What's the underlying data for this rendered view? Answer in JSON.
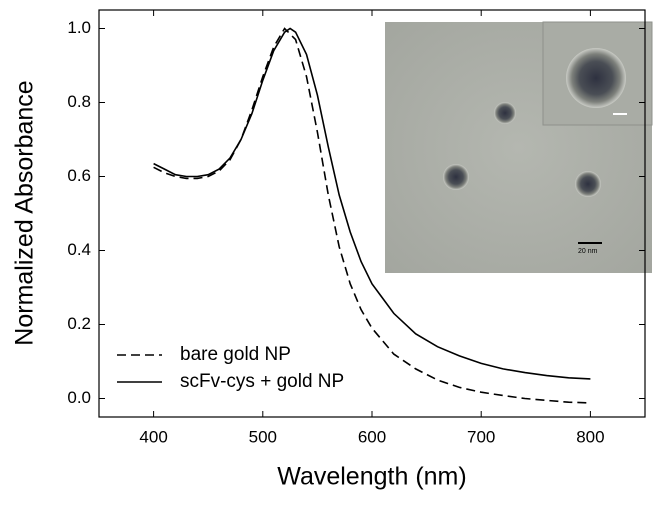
{
  "chart_data": {
    "type": "line",
    "x_label": "Wavelength (nm)",
    "y_label": "Normalized Absorbance",
    "xlim": [
      350,
      850
    ],
    "xticks": [
      400,
      500,
      600,
      700,
      800
    ],
    "ylim": [
      -0.05,
      1.05
    ],
    "yticks": [
      {
        "value": 0,
        "label": "0.0"
      },
      0.2,
      0.4,
      0.6,
      0.8,
      {
        "value": 1,
        "label": "1.0"
      }
    ],
    "legend": "lower left",
    "inset_scale_label": "20 nm",
    "series": [
      {
        "name": "bare gold NP",
        "color": "#000000",
        "dash": "dashed",
        "x": [
          400,
          410,
          420,
          430,
          440,
          450,
          460,
          470,
          480,
          490,
          500,
          510,
          520,
          530,
          540,
          550,
          560,
          570,
          580,
          590,
          600,
          620,
          640,
          660,
          680,
          700,
          720,
          740,
          760,
          780,
          800
        ],
        "values": [
          0.625,
          0.61,
          0.6,
          0.595,
          0.595,
          0.6,
          0.615,
          0.645,
          0.7,
          0.78,
          0.87,
          0.95,
          1.0,
          0.97,
          0.87,
          0.72,
          0.55,
          0.41,
          0.31,
          0.24,
          0.19,
          0.12,
          0.08,
          0.05,
          0.03,
          0.017,
          0.008,
          0.0,
          -0.005,
          -0.01,
          -0.012
        ]
      },
      {
        "name": "scFv-cys + gold NP",
        "color": "#000000",
        "dash": "solid",
        "x": [
          400,
          410,
          420,
          430,
          440,
          450,
          460,
          470,
          480,
          490,
          500,
          510,
          520,
          525,
          530,
          540,
          550,
          560,
          570,
          580,
          590,
          600,
          620,
          640,
          660,
          680,
          700,
          720,
          740,
          760,
          780,
          800
        ],
        "values": [
          0.635,
          0.62,
          0.605,
          0.6,
          0.6,
          0.605,
          0.62,
          0.65,
          0.7,
          0.77,
          0.86,
          0.94,
          0.99,
          1.0,
          0.99,
          0.93,
          0.82,
          0.68,
          0.55,
          0.45,
          0.37,
          0.31,
          0.23,
          0.175,
          0.14,
          0.115,
          0.095,
          0.08,
          0.07,
          0.062,
          0.056,
          0.053
        ]
      }
    ]
  }
}
